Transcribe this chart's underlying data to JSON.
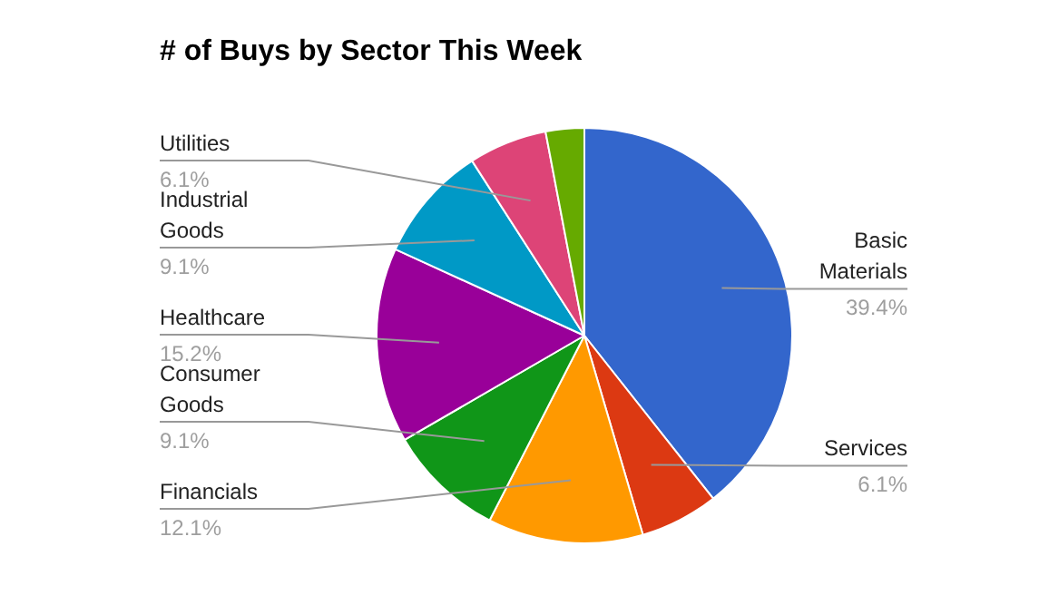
{
  "chart_data": {
    "type": "pie",
    "title": "# of Buys by Sector This Week",
    "categories": [
      "Basic Materials",
      "Services",
      "Financials",
      "Consumer Goods",
      "Healthcare",
      "Industrial Goods",
      "Utilities",
      null
    ],
    "values": [
      39.4,
      6.1,
      12.1,
      9.1,
      15.2,
      9.1,
      6.1,
      3.0
    ],
    "value_labels": [
      "39.4%",
      "6.1%",
      "12.1%",
      "9.1%",
      "15.2%",
      "9.1%",
      "6.1%",
      null
    ],
    "colors": [
      "#3366cc",
      "#dc3912",
      "#ff9900",
      "#109618",
      "#990099",
      "#0099c6",
      "#dd4477",
      "#66aa00"
    ],
    "legend": false
  }
}
